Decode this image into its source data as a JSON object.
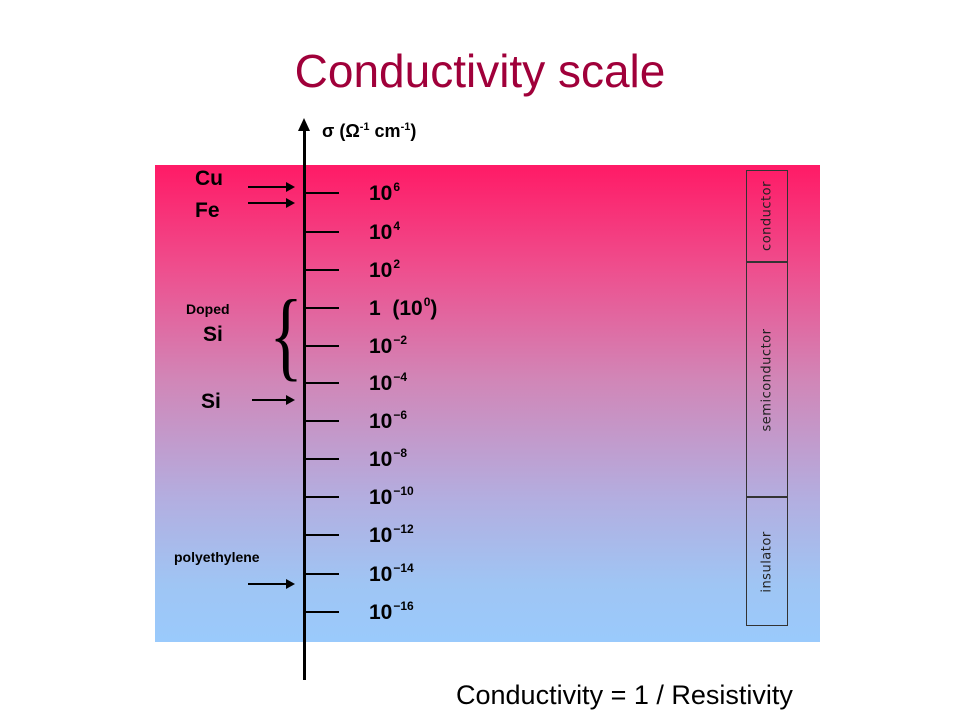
{
  "title": "Conductivity scale",
  "axis": {
    "symbol": "σ (",
    "unit_omega": "Ω",
    "exp1": "-1",
    "unit_cm": " cm",
    "exp2": "-1",
    "close": ")"
  },
  "scale": [
    {
      "base": "10",
      "exp": "6"
    },
    {
      "base": "10",
      "exp": "4"
    },
    {
      "base": "10",
      "exp": "2"
    },
    {
      "base": "1  (10",
      "exp": "0",
      "suffix": ")"
    },
    {
      "base": "10",
      "exp": "−2"
    },
    {
      "base": "10",
      "exp": "−4"
    },
    {
      "base": "10",
      "exp": "−6"
    },
    {
      "base": "10",
      "exp": "−8"
    },
    {
      "base": "10",
      "exp": "−10"
    },
    {
      "base": "10",
      "exp": "−12"
    },
    {
      "base": "10",
      "exp": "−14"
    },
    {
      "base": "10",
      "exp": "−16"
    }
  ],
  "materials": {
    "cu": "Cu",
    "fe": "Fe",
    "doped": "Doped",
    "doped_si": "Si",
    "si": "Si",
    "polyethylene": "polyethylene"
  },
  "classes": {
    "conductor": "conductor",
    "semiconductor": "semiconductor",
    "insulator": "insulator"
  },
  "footer": "Conductivity = 1 / Resistivity",
  "colors": {
    "title": "#a0003a",
    "gradient_top": "#ff1a66",
    "gradient_bottom": "#9acafc"
  }
}
